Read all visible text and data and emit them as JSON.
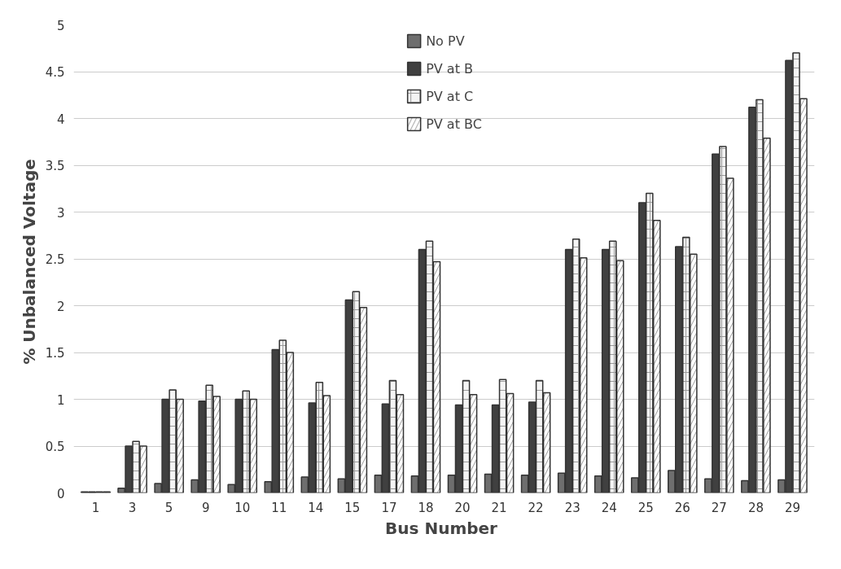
{
  "chart_data": {
    "type": "bar",
    "xlabel": "Bus  Number",
    "ylabel": "% Unbalanced  Voltage",
    "categories": [
      "1",
      "3",
      "5",
      "9",
      "10",
      "11",
      "14",
      "15",
      "17",
      "18",
      "20",
      "21",
      "22",
      "23",
      "24",
      "25",
      "26",
      "27",
      "28",
      "29"
    ],
    "series": [
      {
        "name": "No PV",
        "color": "#6e6e6e",
        "values": [
          0.01,
          0.05,
          0.1,
          0.14,
          0.09,
          0.12,
          0.17,
          0.15,
          0.19,
          0.18,
          0.19,
          0.2,
          0.19,
          0.21,
          0.18,
          0.16,
          0.24,
          0.15,
          0.13,
          0.14
        ]
      },
      {
        "name": "PV at B",
        "color": "#404040",
        "values": [
          0.01,
          0.5,
          1.0,
          0.98,
          1.0,
          1.53,
          0.96,
          2.06,
          0.95,
          2.6,
          0.94,
          0.94,
          0.97,
          2.6,
          2.6,
          3.1,
          2.63,
          3.62,
          4.12,
          4.62
        ]
      },
      {
        "name": "PV at C",
        "color": "#f4f4f4",
        "values": [
          0.01,
          0.55,
          1.1,
          1.15,
          1.09,
          1.63,
          1.18,
          2.15,
          1.2,
          2.69,
          1.2,
          1.21,
          1.2,
          2.71,
          2.69,
          3.2,
          2.73,
          3.7,
          4.2,
          4.7
        ]
      },
      {
        "name": "PV at BC",
        "color": "#ffffff",
        "values": [
          0.01,
          0.5,
          1.0,
          1.03,
          1.0,
          1.5,
          1.04,
          1.98,
          1.05,
          2.47,
          1.05,
          1.06,
          1.07,
          2.51,
          2.48,
          2.91,
          2.55,
          3.36,
          3.79,
          4.21
        ]
      }
    ],
    "ylim": [
      0,
      5
    ],
    "yticks": [
      0,
      0.5,
      1,
      1.5,
      2,
      2.5,
      3,
      3.5,
      4,
      4.5,
      5
    ],
    "grid": "y",
    "legend": "top"
  }
}
